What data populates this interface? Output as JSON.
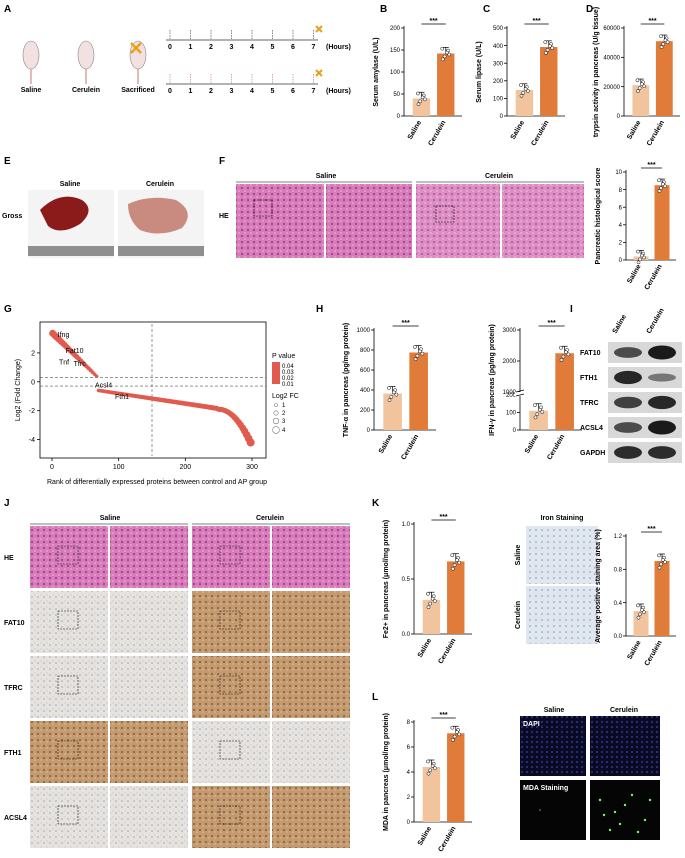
{
  "panels": {
    "A": {
      "letter": "A",
      "mice": [
        "Saline",
        "Cerulein",
        "Sacrificed"
      ],
      "hours": [
        "0",
        "1",
        "2",
        "3",
        "4",
        "5",
        "6",
        "7"
      ],
      "unit": "(Hours)"
    },
    "E": {
      "letter": "E",
      "row_label": "Gross",
      "cols": [
        "Saline",
        "Cerulein"
      ]
    },
    "F": {
      "letter": "F",
      "row_label": "HE",
      "cols": [
        "Saline",
        "Cerulein"
      ]
    },
    "G": {
      "letter": "G",
      "xlabel": "Rank of differentially expressed proteins between control and AP group",
      "ylabel": "Log2 (Fold Change)",
      "pvalue_title": "P value",
      "pvalue_ticks": [
        "0.04",
        "0.03",
        "0.02",
        "0.01"
      ],
      "size_title": "Log2 FC",
      "size_ticks": [
        "1",
        "2",
        "3",
        "4"
      ],
      "genes": [
        "Ifng",
        "Fat10",
        "Tnf",
        "Tfrc",
        "Acsl4",
        "Fth1"
      ]
    },
    "H": {
      "letter": "H"
    },
    "I": {
      "letter": "I",
      "cols": [
        "Saline",
        "Cerulein"
      ],
      "bands": [
        "FAT10",
        "FTH1",
        "TFRC",
        "ACSL4",
        "GAPDH"
      ]
    },
    "J": {
      "letter": "J",
      "cols": [
        "Saline",
        "Cerulein"
      ],
      "rows": [
        "HE",
        "FAT10",
        "TFRC",
        "FTH1",
        "ACSL4"
      ]
    },
    "K": {
      "letter": "K",
      "iron_title": "Iron Staining",
      "rows": [
        "Saline",
        "Cerulein"
      ]
    },
    "L": {
      "letter": "L",
      "cols": [
        "Saline",
        "Cerulein"
      ],
      "rows": [
        "DAPI",
        "MDA Staining"
      ]
    }
  },
  "sig": "***",
  "colors": {
    "saline": "#f2c49e",
    "cerulein": "#e07b39",
    "he": "#d97ab9",
    "ihc_light": "#e6e2de",
    "ihc_brown": "#b8865a",
    "wb": "#1a1a1a"
  },
  "chart_data": [
    {
      "id": "B",
      "type": "bar",
      "categories": [
        "Saline",
        "Cerulein"
      ],
      "values": [
        40,
        142
      ],
      "ylabel": "Serum amylase (U/L)",
      "ylim": [
        0,
        200
      ],
      "yticks": [
        "0",
        "50",
        "100",
        "150",
        "200"
      ]
    },
    {
      "id": "C",
      "type": "bar",
      "categories": [
        "Saline",
        "Cerulein"
      ],
      "values": [
        148,
        392
      ],
      "ylabel": "Serum lipase (U/L)",
      "ylim": [
        0,
        500
      ],
      "yticks": [
        "0",
        "100",
        "200",
        "300",
        "400",
        "500"
      ]
    },
    {
      "id": "D",
      "type": "bar",
      "categories": [
        "Saline",
        "Cerulein"
      ],
      "values": [
        21000,
        51000
      ],
      "ylabel": "trypsin activity in pancreas (U/g tissue)",
      "ylim": [
        0,
        60000
      ],
      "yticks": [
        "0",
        "20000",
        "40000",
        "60000"
      ]
    },
    {
      "id": "F2",
      "type": "bar",
      "categories": [
        "Saline",
        "Cerulein"
      ],
      "values": [
        0.4,
        8.5
      ],
      "ylabel": "Pancreatic histological score",
      "ylim": [
        0,
        10
      ],
      "yticks": [
        "0",
        "2",
        "4",
        "6",
        "8",
        "10"
      ]
    },
    {
      "id": "H1",
      "type": "bar",
      "categories": [
        "Saline",
        "Cerulein"
      ],
      "values": [
        365,
        775
      ],
      "ylabel": "TNF-α in pancreas (pg/mg protein)",
      "ylim": [
        0,
        1000
      ],
      "yticks": [
        "0",
        "200",
        "400",
        "600",
        "800",
        "1000"
      ]
    },
    {
      "id": "H2",
      "type": "bar",
      "categories": [
        "Saline",
        "Cerulein"
      ],
      "values": [
        110,
        2250
      ],
      "ylabel": "IFN-γ in pancreas (pg/mg protein)",
      "ylim": [
        0,
        3000
      ],
      "yticks": [
        "0",
        "100",
        "200",
        "1000",
        "2000",
        "3000"
      ]
    },
    {
      "id": "K1",
      "type": "bar",
      "categories": [
        "Saline",
        "Cerulein"
      ],
      "values": [
        0.31,
        0.66
      ],
      "ylabel": "Fe2+ in pancreas (μmol/mg protein)",
      "ylim": [
        0,
        1.0
      ],
      "yticks": [
        "0.0",
        "0.5",
        "1.0"
      ]
    },
    {
      "id": "K2",
      "type": "bar",
      "categories": [
        "Saline",
        "Cerulein"
      ],
      "values": [
        0.3,
        0.9
      ],
      "ylabel": "Average positive staining area (%)",
      "ylim": [
        0,
        1.2
      ],
      "yticks": [
        "0.0",
        "0.4",
        "0.8",
        "1.2"
      ]
    },
    {
      "id": "L1",
      "type": "bar",
      "categories": [
        "Saline",
        "Cerulein"
      ],
      "values": [
        4.4,
        7.1
      ],
      "ylabel": "MDA in pancreas (μmol/mg protein)",
      "ylim": [
        0,
        8
      ],
      "yticks": [
        "0",
        "2",
        "4",
        "6",
        "8"
      ]
    }
  ]
}
